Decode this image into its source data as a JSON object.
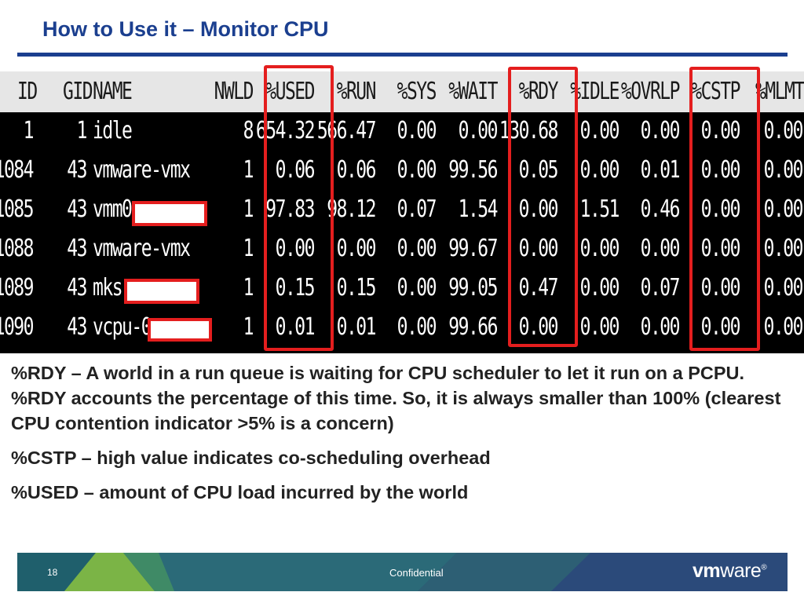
{
  "slide": {
    "title": "How to Use it – Monitor CPU"
  },
  "terminal": {
    "headers": [
      "ID",
      "GID",
      "NAME",
      "NWLD",
      "%USED",
      "%RUN",
      "%SYS",
      "%WAIT",
      "%RDY",
      "%IDLE",
      "%OVRLP",
      "%CSTP",
      "%MLMTD"
    ],
    "rows": [
      {
        "id": "1",
        "gid": "1",
        "name": "idle",
        "nwld": "8",
        "used": "654.32",
        "run": "566.47",
        "sys": "0.00",
        "wait": "0.00",
        "rdy": "130.68",
        "idle": "0.00",
        "ovrlp": "0.00",
        "cstp": "0.00",
        "mlmtd": "0.00"
      },
      {
        "id": "1084",
        "gid": "43",
        "name": "vmware-vmx",
        "nwld": "1",
        "used": "0.06",
        "run": "0.06",
        "sys": "0.00",
        "wait": "99.56",
        "rdy": "0.05",
        "idle": "0.00",
        "ovrlp": "0.01",
        "cstp": "0.00",
        "mlmtd": "0.00"
      },
      {
        "id": "1085",
        "gid": "43",
        "name": "vmm0:",
        "nwld": "1",
        "used": "97.83",
        "run": "98.12",
        "sys": "0.07",
        "wait": "1.54",
        "rdy": "0.00",
        "idle": "1.51",
        "ovrlp": "0.46",
        "cstp": "0.00",
        "mlmtd": "0.00"
      },
      {
        "id": "1088",
        "gid": "43",
        "name": "vmware-vmx",
        "nwld": "1",
        "used": "0.00",
        "run": "0.00",
        "sys": "0.00",
        "wait": "99.67",
        "rdy": "0.00",
        "idle": "0.00",
        "ovrlp": "0.00",
        "cstp": "0.00",
        "mlmtd": "0.00"
      },
      {
        "id": "1089",
        "gid": "43",
        "name": "mks:",
        "nwld": "1",
        "used": "0.15",
        "run": "0.15",
        "sys": "0.00",
        "wait": "99.05",
        "rdy": "0.47",
        "idle": "0.00",
        "ovrlp": "0.07",
        "cstp": "0.00",
        "mlmtd": "0.00"
      },
      {
        "id": "1090",
        "gid": "43",
        "name": "vcpu-0:",
        "nwld": "1",
        "used": "0.01",
        "run": "0.01",
        "sys": "0.00",
        "wait": "99.66",
        "rdy": "0.00",
        "idle": "0.00",
        "ovrlp": "0.00",
        "cstp": "0.00",
        "mlmtd": "0.00"
      }
    ]
  },
  "highlighted_columns": [
    "%USED",
    "%RDY",
    "%CSTP"
  ],
  "colors": {
    "title": "#1b3f8f",
    "highlight": "#e41e1e",
    "footer_blue": "#2b4a7a",
    "footer_teal": "#2b6a78",
    "footer_green": "#7bb446"
  },
  "body": {
    "p1": "%RDY – A world in a run queue is waiting for CPU scheduler to let it run on a PCPU. %RDY accounts the percentage of this time. So, it is always smaller than 100% (clearest CPU contention indicator >5% is a concern)",
    "p2": "%CSTP – high value indicates co-scheduling overhead",
    "p3": "%USED – amount of CPU load incurred by the world"
  },
  "footer": {
    "page_number": "18",
    "confidential": "Confidential",
    "logo_bold": "vm",
    "logo_rest": "ware",
    "logo_mark": "®"
  }
}
